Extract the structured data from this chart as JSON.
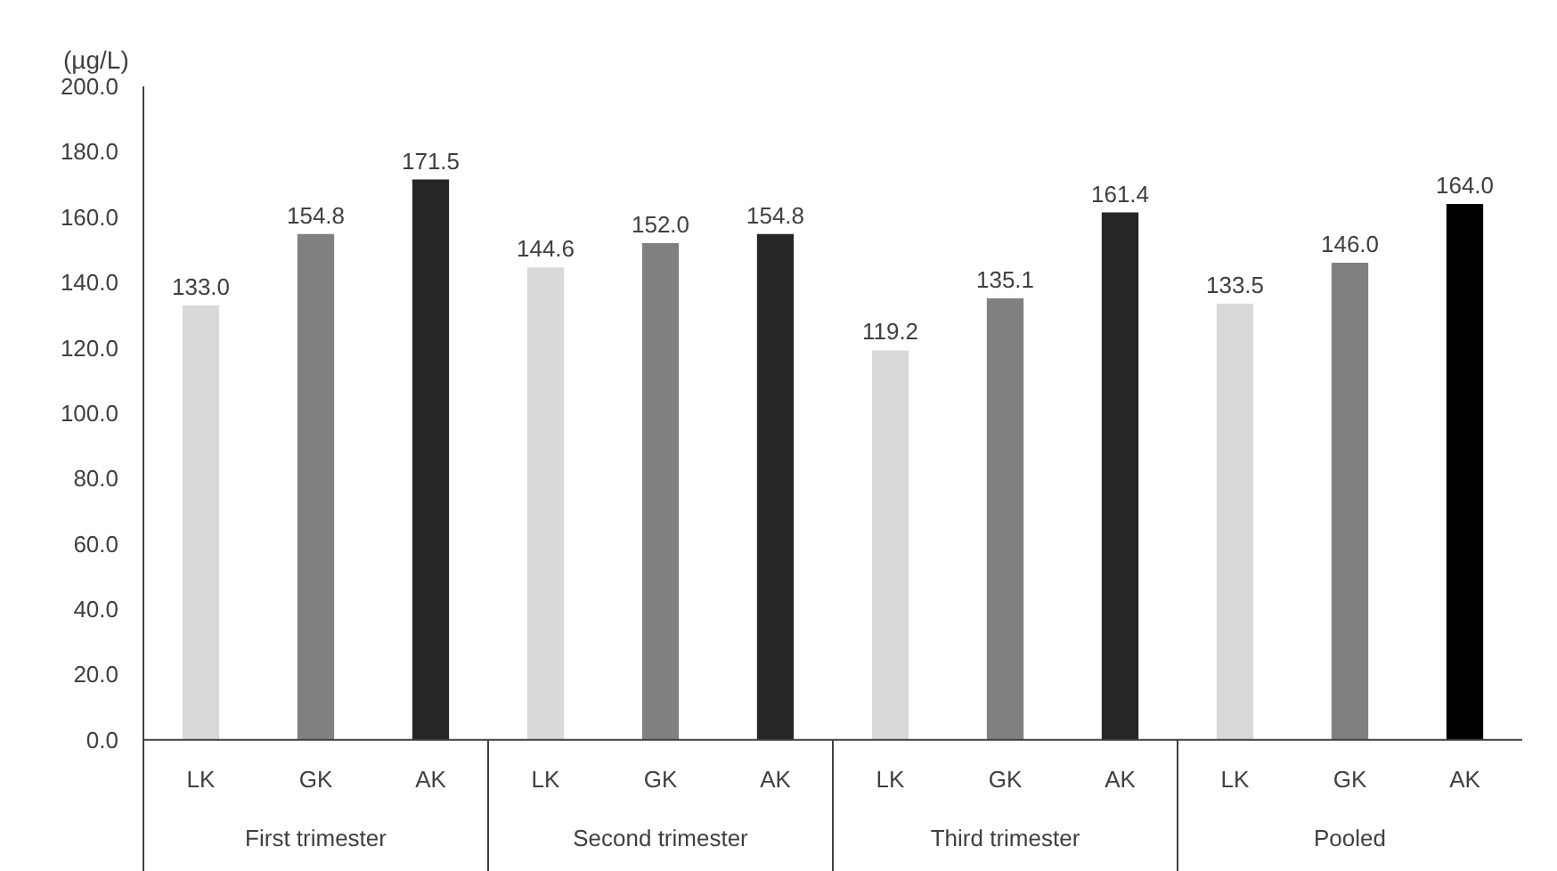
{
  "chart_data": {
    "type": "bar",
    "ylabel": "(µg/L)",
    "categories": [
      "LK",
      "GK",
      "AK",
      "LK",
      "GK",
      "AK",
      "LK",
      "GK",
      "AK",
      "LK",
      "GK",
      "AK"
    ],
    "values": [
      133.0,
      154.8,
      171.5,
      144.6,
      152.0,
      154.8,
      119.2,
      135.1,
      161.4,
      133.5,
      146.0,
      164.0
    ],
    "colors": [
      "#d9d9d9",
      "#808080",
      "#262626",
      "#d9d9d9",
      "#808080",
      "#262626",
      "#d9d9d9",
      "#808080",
      "#262626",
      "#d9d9d9",
      "#808080",
      "#000000"
    ],
    "annotations": [
      "First trimester",
      "Second trimester",
      "Third trimester",
      "Pooled"
    ],
    "ylim": [
      0,
      200
    ],
    "yticks": [
      {
        "value": 0,
        "label": "0.0"
      },
      {
        "value": 20,
        "label": "20.0"
      },
      {
        "value": 40,
        "label": "40.0"
      },
      {
        "value": 60,
        "label": "60.0"
      },
      {
        "value": 80,
        "label": "80.0"
      },
      {
        "value": 100,
        "label": "100.0"
      },
      {
        "value": 120,
        "label": "120.0"
      },
      {
        "value": 140,
        "label": "140.0"
      },
      {
        "value": 160,
        "label": "160.0"
      },
      {
        "value": 180,
        "label": "180.0"
      },
      {
        "value": 200,
        "label": "200.0"
      }
    ],
    "value_labels": [
      "133.0",
      "154.8",
      "171.5",
      "144.6",
      "152.0",
      "154.8",
      "119.2",
      "135.1",
      "161.4",
      "133.5",
      "146.0",
      "164.0"
    ],
    "grid": false
  }
}
